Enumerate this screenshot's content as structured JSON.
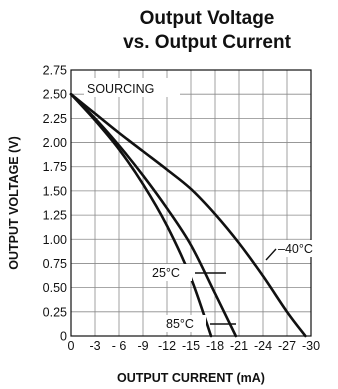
{
  "chart_data": {
    "type": "line",
    "title": "Output Voltage\nvs. Output Current",
    "title_lines": [
      "Output Voltage",
      "vs. Output Current"
    ],
    "xlabel": "OUTPUT CURRENT (mA)",
    "ylabel": "OUTPUT VOLTAGE (V)",
    "xlim": [
      0,
      -30
    ],
    "ylim": [
      0,
      2.75
    ],
    "x_ticks": [
      "0",
      "-3",
      "- 6",
      "-9",
      "-12",
      "-15",
      "-18",
      "-21",
      "-24",
      "-27",
      "-30"
    ],
    "y_ticks": [
      "2.75",
      "2.50",
      "2.25",
      "2.00",
      "1.75",
      "1.50",
      "1.25",
      "1.00",
      "0.75",
      "0.50",
      "0.25",
      "0"
    ],
    "grid": true,
    "annotations": [
      {
        "text": "SOURCING"
      }
    ],
    "series": [
      {
        "name": "–40°C",
        "x": [
          0,
          -3,
          -6,
          -9,
          -12,
          -15,
          -18,
          -21,
          -24,
          -27,
          -29.3
        ],
        "y": [
          2.5,
          2.3,
          2.1,
          1.91,
          1.72,
          1.52,
          1.26,
          0.96,
          0.62,
          0.25,
          0
        ]
      },
      {
        "name": "25°C",
        "x": [
          0,
          -3,
          -6,
          -9,
          -12,
          -15,
          -18,
          -20.6
        ],
        "y": [
          2.5,
          2.25,
          1.97,
          1.66,
          1.32,
          0.94,
          0.44,
          0
        ]
      },
      {
        "name": "85°C",
        "x": [
          0,
          -3,
          -6,
          -9,
          -12,
          -15,
          -17.5
        ],
        "y": [
          2.5,
          2.23,
          1.93,
          1.57,
          1.14,
          0.6,
          0
        ]
      }
    ]
  }
}
